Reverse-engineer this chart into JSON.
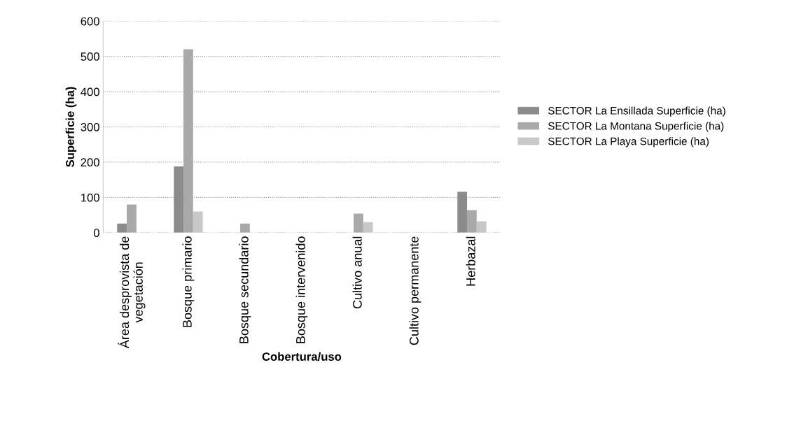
{
  "chart_data": {
    "type": "bar",
    "xlabel": "Cobertura/uso",
    "ylabel": "Superficie (ha)",
    "categories": [
      "Área desprovista de\nvegetación",
      "Bosque primario",
      "Bosque secundario",
      "Bosque intervenido",
      "Cultivo anual",
      "Cultivo permanente",
      "Herbazal"
    ],
    "series": [
      {
        "name": "SECTOR La Ensillada Superficie (ha)",
        "color": "#8c8c8c",
        "values": [
          26,
          188,
          0,
          0,
          null,
          0,
          116
        ]
      },
      {
        "name": "SECTOR La Montana Superficie (ha)",
        "color": "#a9a9a9",
        "values": [
          80,
          520,
          26,
          null,
          54,
          null,
          64
        ]
      },
      {
        "name": "SECTOR La Playa Superficie (ha)",
        "color": "#c8c8c8",
        "values": [
          0,
          60,
          0,
          null,
          30,
          null,
          32
        ]
      }
    ],
    "ylim": [
      0,
      600
    ],
    "yticks": [
      0,
      100,
      200,
      300,
      400,
      500,
      600
    ],
    "grid": "y",
    "legend": "right"
  }
}
